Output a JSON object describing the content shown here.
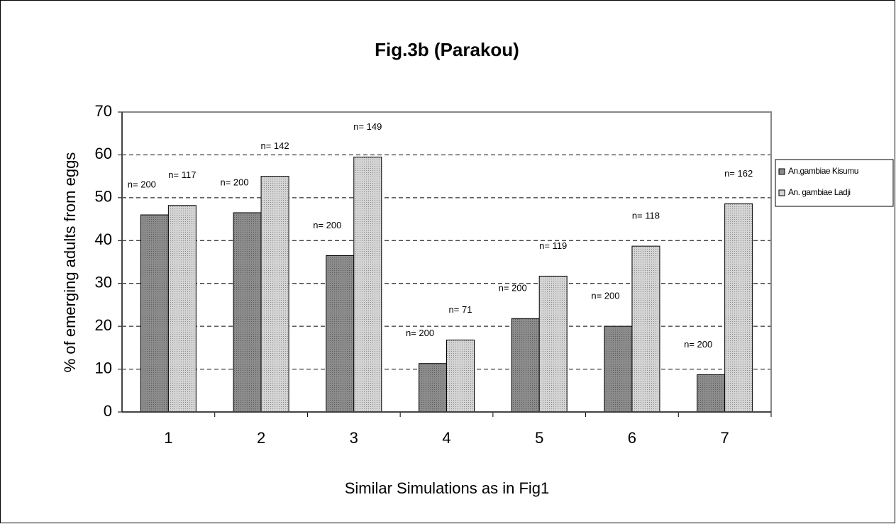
{
  "chart_data": {
    "type": "bar",
    "title": "Fig.3b (Parakou)",
    "xlabel": "Similar Simulations as in Fig1",
    "ylabel": "% of emerging adults from eggs",
    "categories": [
      "1",
      "2",
      "3",
      "4",
      "5",
      "6",
      "7"
    ],
    "series": [
      {
        "name": "An.gambiae Kisumu",
        "color": "#8c8c8c",
        "values": [
          46,
          46.5,
          36.5,
          11.3,
          21.8,
          20,
          8.7
        ],
        "annotations": [
          "n= 200",
          "n= 200",
          "n= 200",
          "n= 200",
          "n= 200",
          "n= 200",
          "n= 200"
        ]
      },
      {
        "name": "An. gambiae Ladji",
        "color": "#d4d4d4",
        "values": [
          48.2,
          55,
          59.5,
          16.8,
          31.7,
          38.7,
          48.6
        ],
        "annotations": [
          "n= 117",
          "n= 142",
          "n= 149",
          "n= 71",
          "n= 119",
          "n= 118",
          "n= 162"
        ]
      }
    ],
    "ylim": [
      0,
      70
    ],
    "yticks": [
      0,
      10,
      20,
      30,
      40,
      50,
      60,
      70
    ],
    "grid": true,
    "legend": "right"
  }
}
